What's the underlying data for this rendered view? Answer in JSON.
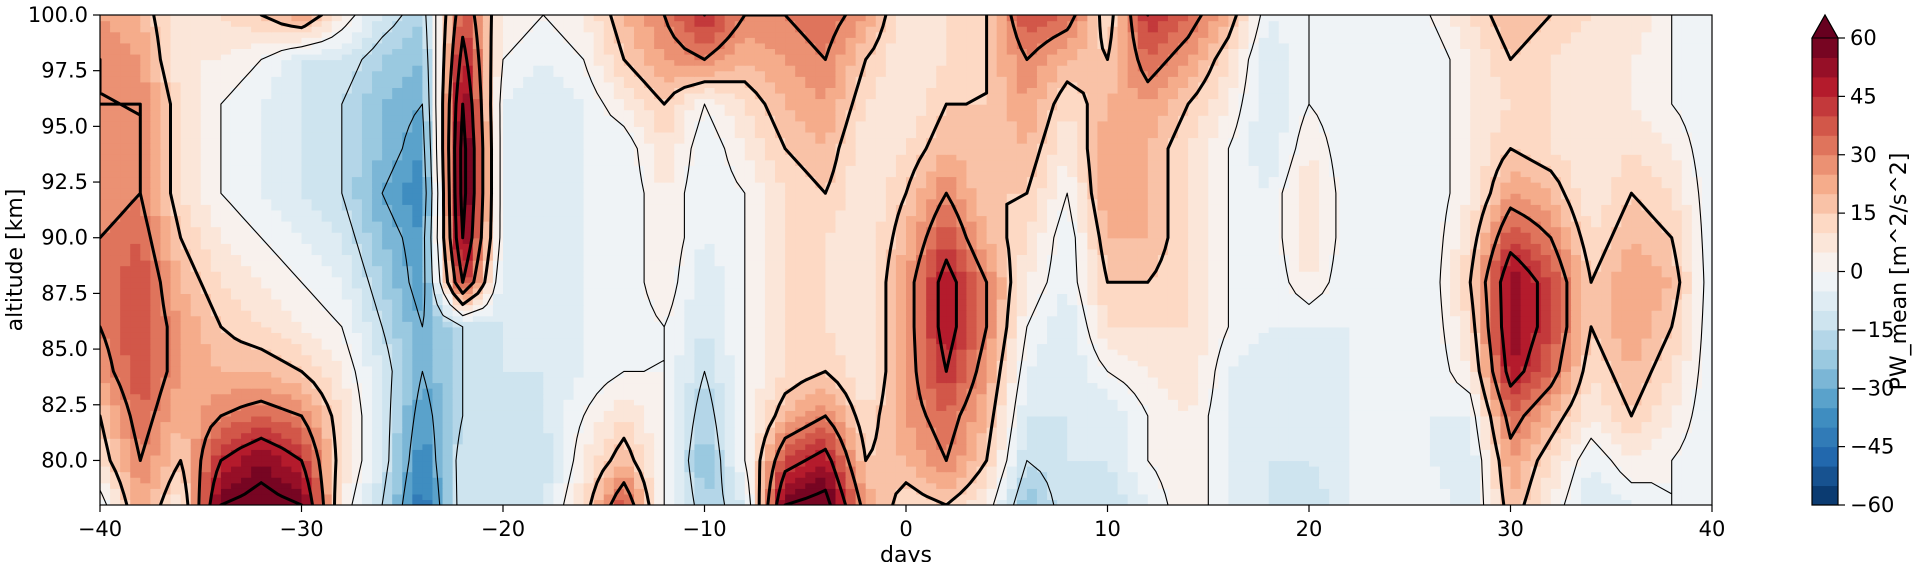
{
  "chart_data": {
    "type": "heatmap",
    "subtype": "filled-contour with line-contour overlay",
    "title": "",
    "xlabel": "days",
    "ylabel": "altitude [km]",
    "xlim": [
      -40,
      40
    ],
    "ylim": [
      78,
      100
    ],
    "x_ticks": [
      -40,
      -30,
      -20,
      -10,
      0,
      10,
      20,
      30,
      40
    ],
    "x_tick_labels": [
      "−40",
      "−30",
      "−20",
      "−10",
      "0",
      "10",
      "20",
      "30",
      "40"
    ],
    "y_ticks": [
      80.0,
      82.5,
      85.0,
      87.5,
      90.0,
      92.5,
      95.0,
      97.5,
      100.0
    ],
    "y_tick_labels": [
      "80.0",
      "82.5",
      "85.0",
      "87.5",
      "90.0",
      "92.5",
      "95.0",
      "97.5",
      "100.0"
    ],
    "colorbar": {
      "label": "PW_mean [m^2/s^2]",
      "colormap": "RdBu_r",
      "range": [
        -60,
        60
      ],
      "extend": "max",
      "ticks": [
        60,
        45,
        30,
        15,
        0,
        -15,
        -30,
        -45,
        -60
      ],
      "tick_labels": [
        "60",
        "45",
        "30",
        "15",
        "0",
        "−15",
        "−30",
        "−45",
        "−60"
      ]
    },
    "x_samples": [
      -40,
      -38,
      -36,
      -34,
      -32,
      -30,
      -28,
      -26,
      -24,
      -22,
      -20,
      -18,
      -16,
      -14,
      -12,
      -10,
      -8,
      -6,
      -4,
      -2,
      0,
      2,
      4,
      6,
      8,
      10,
      12,
      14,
      16,
      18,
      20,
      22,
      24,
      26,
      28,
      30,
      32,
      34,
      36,
      38,
      40
    ],
    "y_samples": [
      78,
      80,
      82,
      84,
      86,
      88,
      90,
      92,
      94,
      96,
      98,
      100
    ],
    "values": [
      [
        -5,
        25,
        5,
        60,
        65,
        60,
        5,
        -15,
        -45,
        -10,
        -15,
        -10,
        10,
        40,
        0,
        -20,
        -10,
        60,
        65,
        25,
        10,
        15,
        5,
        -25,
        -10,
        -15,
        -5,
        5,
        -5,
        -10,
        -15,
        -5,
        -5,
        0,
        -10,
        20,
        5,
        -10,
        -5,
        0,
        -5
      ],
      [
        10,
        30,
        15,
        45,
        55,
        45,
        10,
        -10,
        -40,
        -10,
        -15,
        -15,
        5,
        20,
        0,
        -25,
        0,
        40,
        50,
        15,
        20,
        30,
        15,
        -15,
        -10,
        -10,
        0,
        5,
        -5,
        -10,
        -10,
        -5,
        -5,
        -5,
        -10,
        25,
        10,
        -5,
        5,
        0,
        -5
      ],
      [
        15,
        35,
        20,
        30,
        35,
        30,
        10,
        -10,
        -35,
        -15,
        -15,
        -10,
        0,
        10,
        0,
        -20,
        0,
        20,
        30,
        10,
        25,
        35,
        20,
        -10,
        -10,
        -10,
        0,
        5,
        -5,
        -10,
        -10,
        -5,
        -5,
        -5,
        -5,
        35,
        20,
        5,
        15,
        5,
        -5
      ],
      [
        25,
        40,
        25,
        20,
        20,
        15,
        5,
        -10,
        -30,
        -15,
        -10,
        -10,
        -5,
        0,
        0,
        -15,
        0,
        10,
        15,
        5,
        25,
        45,
        25,
        -5,
        -10,
        0,
        5,
        10,
        -5,
        -10,
        -10,
        -5,
        -5,
        -5,
        5,
        50,
        35,
        10,
        20,
        10,
        -5
      ],
      [
        30,
        40,
        25,
        15,
        10,
        5,
        0,
        -15,
        -30,
        -15,
        -10,
        -10,
        -5,
        -5,
        0,
        -10,
        0,
        10,
        10,
        5,
        25,
        50,
        30,
        0,
        -10,
        10,
        10,
        10,
        0,
        -5,
        -5,
        -5,
        -5,
        -5,
        10,
        55,
        40,
        15,
        25,
        15,
        -5
      ],
      [
        30,
        40,
        20,
        10,
        5,
        0,
        -5,
        -20,
        -35,
        45,
        -10,
        -10,
        -5,
        -5,
        5,
        -10,
        0,
        10,
        10,
        5,
        25,
        50,
        30,
        5,
        -5,
        15,
        15,
        10,
        0,
        -5,
        5,
        -5,
        -5,
        -5,
        15,
        55,
        40,
        15,
        25,
        20,
        -5
      ],
      [
        30,
        35,
        15,
        5,
        0,
        -5,
        -10,
        -25,
        -35,
        60,
        -5,
        -10,
        -5,
        -5,
        5,
        -5,
        0,
        10,
        10,
        5,
        20,
        40,
        20,
        10,
        -5,
        20,
        20,
        10,
        0,
        -5,
        10,
        -5,
        -5,
        -5,
        10,
        40,
        30,
        10,
        20,
        15,
        -5
      ],
      [
        25,
        30,
        10,
        0,
        -5,
        -10,
        -15,
        -30,
        -40,
        65,
        -5,
        -10,
        -5,
        -5,
        5,
        -5,
        0,
        10,
        15,
        5,
        15,
        30,
        15,
        15,
        0,
        25,
        20,
        10,
        0,
        -5,
        10,
        -5,
        -5,
        -5,
        5,
        25,
        20,
        5,
        15,
        10,
        -5
      ],
      [
        25,
        30,
        10,
        0,
        -5,
        -10,
        -15,
        -25,
        -35,
        65,
        -5,
        -10,
        -5,
        -5,
        10,
        -5,
        5,
        15,
        20,
        5,
        10,
        20,
        15,
        20,
        5,
        25,
        20,
        10,
        0,
        -10,
        5,
        -5,
        -5,
        -5,
        5,
        15,
        10,
        5,
        10,
        5,
        -5
      ],
      [
        30,
        30,
        10,
        0,
        -5,
        -10,
        -15,
        -25,
        -30,
        60,
        -5,
        -10,
        -5,
        5,
        15,
        0,
        10,
        20,
        25,
        10,
        5,
        15,
        15,
        25,
        10,
        20,
        25,
        15,
        5,
        -10,
        0,
        -5,
        -5,
        -5,
        5,
        10,
        10,
        5,
        5,
        0,
        -5
      ],
      [
        30,
        25,
        5,
        5,
        0,
        -10,
        -10,
        -20,
        -25,
        50,
        0,
        -5,
        0,
        15,
        25,
        30,
        20,
        25,
        30,
        15,
        5,
        10,
        15,
        30,
        20,
        15,
        35,
        25,
        10,
        -10,
        0,
        -5,
        -5,
        -5,
        5,
        15,
        10,
        5,
        5,
        0,
        -5
      ],
      [
        25,
        20,
        5,
        10,
        15,
        25,
        5,
        -10,
        -20,
        40,
        5,
        0,
        5,
        20,
        30,
        45,
        30,
        30,
        35,
        25,
        5,
        10,
        15,
        40,
        35,
        10,
        45,
        35,
        20,
        -5,
        0,
        -5,
        -5,
        0,
        10,
        20,
        15,
        10,
        10,
        0,
        -5
      ]
    ]
  }
}
